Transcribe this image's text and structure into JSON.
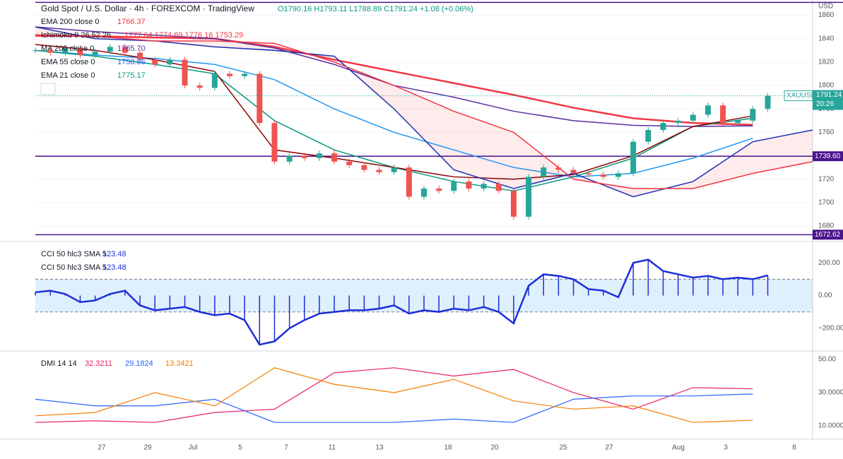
{
  "header": {
    "title": "Gold Spot / U.S. Dollar · 4h · FOREXCOM · TradingView",
    "ohlc": "O1790.16 H1793.11 L1788.89 C1791.24 +1.08 (+0.06%)"
  },
  "legends": [
    {
      "label": "EMA 200 close 0",
      "values": "1766.37",
      "color": "#f23645"
    },
    {
      "label": "Ichimoku 9 26 52 26",
      "values": "1777.64 1774.69 1776.16 1753.29",
      "color": "#f23645"
    },
    {
      "label": "MA 200 close 0",
      "values": "1765.70",
      "color": "#5b2c9e"
    },
    {
      "label": "EMA 55 close 0",
      "values": "1758.86",
      "color": "#2962ff"
    },
    {
      "label": "EMA 21 close 0",
      "values": "1775.17",
      "color": "#089981"
    }
  ],
  "price": {
    "unit": "USD",
    "ylim": [
      1668,
      1873
    ],
    "yticks": [
      1680,
      1700,
      1720,
      1740,
      1760,
      1780,
      1800,
      1820,
      1840,
      1860
    ],
    "close": [
      1830,
      1828,
      1832,
      1826,
      1829,
      1833,
      1828,
      1822,
      1818,
      1822,
      1800,
      1798,
      1810,
      1808,
      1810,
      1768,
      1735,
      1740,
      1738,
      1742,
      1735,
      1732,
      1728,
      1726,
      1730,
      1705,
      1712,
      1710,
      1718,
      1712,
      1716,
      1710,
      1688,
      1722,
      1730,
      1728,
      1725,
      1724,
      1722,
      1725,
      1752,
      1762,
      1768,
      1770,
      1775,
      1783,
      1768,
      1770,
      1780,
      1791.24
    ],
    "lines": [
      {
        "name": "ema200",
        "color": "#f23645",
        "width": 2.5,
        "x": [
          0,
          4,
          8,
          12,
          16,
          20,
          24,
          28,
          32,
          36,
          40,
          44,
          48
        ],
        "values": [
          1843,
          1842,
          1841,
          1840,
          1833,
          1822,
          1812,
          1802,
          1792,
          1781,
          1772,
          1768,
          1766.4
        ]
      },
      {
        "name": "ma200",
        "color": "#5b2c9e",
        "width": 1.5,
        "x": [
          0,
          4,
          8,
          12,
          16,
          20,
          24,
          28,
          32,
          36,
          40,
          44,
          48
        ],
        "values": [
          1850,
          1846,
          1843,
          1840,
          1832,
          1818,
          1800,
          1790,
          1778,
          1770,
          1766,
          1765,
          1765.5
        ]
      },
      {
        "name": "ema55",
        "color": "#2196f3",
        "width": 1.5,
        "x": [
          0,
          4,
          8,
          12,
          16,
          20,
          24,
          28,
          32,
          36,
          40,
          44,
          48
        ],
        "values": [
          1830,
          1826,
          1823,
          1818,
          1805,
          1780,
          1760,
          1745,
          1730,
          1722,
          1725,
          1738,
          1755
        ]
      },
      {
        "name": "ema21",
        "color": "#089981",
        "width": 1.5,
        "x": [
          0,
          4,
          8,
          12,
          16,
          20,
          24,
          28,
          32,
          36,
          40,
          44,
          48
        ],
        "values": [
          1830,
          1825,
          1818,
          1810,
          1770,
          1745,
          1730,
          1718,
          1710,
          1722,
          1738,
          1765,
          1772
        ]
      },
      {
        "name": "conversion",
        "color": "#8b0000",
        "width": 1.5,
        "x": [
          0,
          4,
          8,
          12,
          16,
          20,
          24,
          28,
          32,
          36,
          40,
          44,
          48
        ],
        "values": [
          1835,
          1830,
          1822,
          1812,
          1745,
          1738,
          1730,
          1722,
          1720,
          1724,
          1740,
          1765,
          1774
        ]
      },
      {
        "name": "span-a",
        "color": "#1c2fb0",
        "width": 1.5,
        "x": [
          0,
          4,
          8,
          12,
          16,
          20,
          24,
          28,
          32,
          36,
          40,
          44,
          48,
          52
        ],
        "values": [
          1850,
          1840,
          1838,
          1833,
          1830,
          1825,
          1780,
          1728,
          1712,
          1725,
          1705,
          1718,
          1752,
          1762
        ]
      },
      {
        "name": "span-b",
        "color": "#f23645",
        "width": 1.5,
        "x": [
          0,
          4,
          8,
          12,
          16,
          20,
          24,
          28,
          32,
          36,
          40,
          44,
          48,
          52
        ],
        "values": [
          1842,
          1842,
          1838,
          1838,
          1836,
          1820,
          1800,
          1778,
          1760,
          1720,
          1712,
          1712,
          1725,
          1735
        ]
      }
    ],
    "levels": [
      {
        "value": 1871
      },
      {
        "value": 1739.6,
        "label": "1739.60"
      },
      {
        "value": 1672.62,
        "label": "1672.62"
      }
    ],
    "last": {
      "symbol": "XAUUSD",
      "price": "1791.24",
      "countdown": "20:26"
    }
  },
  "cci": {
    "title": "CCI 50 hlc3 SMA 5",
    "value": "123.48",
    "ylim": [
      -330,
      322
    ],
    "band": [
      -100,
      100
    ],
    "yticks": [
      {
        "value": 200,
        "label": "200.00"
      },
      {
        "value": 0,
        "label": "0.00"
      },
      {
        "value": -200,
        "label": "−200.00"
      }
    ],
    "values": [
      20,
      30,
      10,
      -40,
      -30,
      10,
      30,
      -60,
      -90,
      -80,
      -70,
      -100,
      -120,
      -110,
      -150,
      -300,
      -280,
      -200,
      -150,
      -110,
      -100,
      -90,
      -90,
      -80,
      -60,
      -110,
      -90,
      -100,
      -80,
      -90,
      -70,
      -100,
      -170,
      60,
      130,
      120,
      100,
      40,
      30,
      -10,
      200,
      220,
      150,
      130,
      110,
      120,
      100,
      110,
      100,
      123.48
    ]
  },
  "dmi": {
    "title": "DMI 14 14",
    "ylim": [
      2.7,
      54.3
    ],
    "yticks": [
      {
        "value": 50,
        "label": "50.00"
      },
      {
        "value": 30,
        "label": "30.0000"
      },
      {
        "value": 10,
        "label": "10.0000"
      }
    ],
    "x": [
      0,
      4,
      8,
      12,
      16,
      20,
      24,
      28,
      32,
      36,
      40,
      44,
      48
    ],
    "series": [
      {
        "name": "32.3211",
        "color": "#e91e63",
        "values": [
          12,
          13,
          12,
          18,
          20,
          42,
          45,
          40,
          44,
          30,
          20,
          33,
          32.32
        ]
      },
      {
        "name": "29.1824",
        "color": "#2962ff",
        "values": [
          26,
          22,
          22,
          26,
          12,
          12,
          12,
          14,
          12,
          26,
          28,
          28,
          29.18
        ]
      },
      {
        "name": "13.3421",
        "color": "#f57c00",
        "values": [
          16,
          18,
          30,
          22,
          45,
          35,
          30,
          38,
          25,
          20,
          22,
          12,
          13.34
        ]
      }
    ]
  },
  "xaxis": [
    "27",
    "29",
    "Jul",
    "5",
    "7",
    "11",
    "13",
    "18",
    "20",
    "25",
    "27",
    "Aug",
    "3",
    "8"
  ]
}
